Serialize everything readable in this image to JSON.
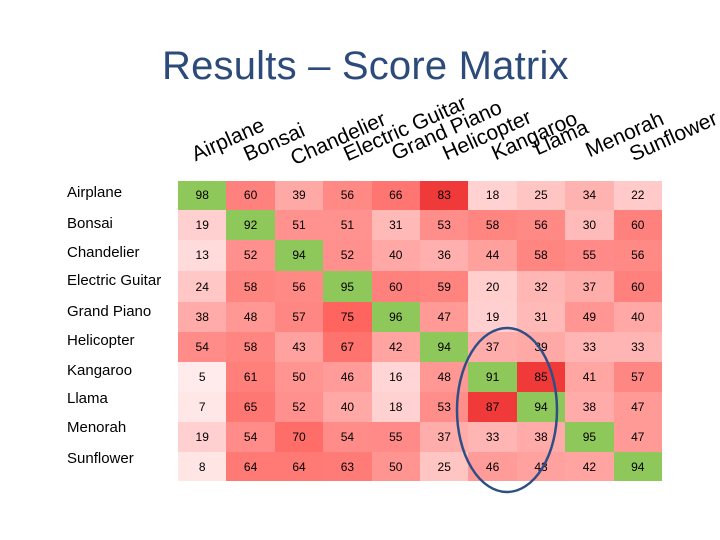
{
  "title": "Results – Score Matrix",
  "column_headers": [
    "Airplane",
    "Bonsai",
    "Chandelier",
    "Electric Guitar",
    "Grand Piano",
    "Helicopter",
    "Kangaroo",
    "Llama",
    "Menorah",
    "Sunflower"
  ],
  "row_headers": [
    "Airplane",
    "Bonsai",
    "Chandelier",
    "Electric Guitar",
    "Grand Piano",
    "Helicopter",
    "Kangaroo",
    "Llama",
    "Menorah",
    "Sunflower"
  ],
  "matrix": [
    [
      98,
      60,
      39,
      56,
      66,
      83,
      18,
      25,
      34,
      22
    ],
    [
      19,
      92,
      51,
      51,
      31,
      53,
      58,
      56,
      30,
      60
    ],
    [
      13,
      52,
      94,
      52,
      40,
      36,
      44,
      58,
      55,
      56
    ],
    [
      24,
      58,
      56,
      95,
      60,
      59,
      20,
      32,
      37,
      60
    ],
    [
      38,
      48,
      57,
      75,
      96,
      47,
      19,
      31,
      49,
      40
    ],
    [
      54,
      58,
      43,
      67,
      42,
      94,
      37,
      39,
      33,
      33
    ],
    [
      5,
      61,
      50,
      46,
      16,
      48,
      91,
      85,
      41,
      57
    ],
    [
      7,
      65,
      52,
      40,
      18,
      53,
      87,
      94,
      38,
      47
    ],
    [
      19,
      54,
      70,
      54,
      55,
      37,
      33,
      38,
      95,
      47
    ],
    [
      8,
      64,
      64,
      63,
      50,
      25,
      46,
      43,
      42,
      94
    ]
  ],
  "colors": {
    "title": "#2c4a7a",
    "highlight_green": "#8fc85a",
    "highlight_red": "#f03a3a",
    "circle": "#2e4f86"
  },
  "chart_data": {
    "type": "heatmap",
    "title": "Results – Score Matrix",
    "x_categories": [
      "Airplane",
      "Bonsai",
      "Chandelier",
      "Electric Guitar",
      "Grand Piano",
      "Helicopter",
      "Kangaroo",
      "Llama",
      "Menorah",
      "Sunflower"
    ],
    "y_categories": [
      "Airplane",
      "Bonsai",
      "Chandelier",
      "Electric Guitar",
      "Grand Piano",
      "Helicopter",
      "Kangaroo",
      "Llama",
      "Menorah",
      "Sunflower"
    ],
    "values": [
      [
        98,
        60,
        39,
        56,
        66,
        83,
        18,
        25,
        34,
        22
      ],
      [
        19,
        92,
        51,
        51,
        31,
        53,
        58,
        56,
        30,
        60
      ],
      [
        13,
        52,
        94,
        52,
        40,
        36,
        44,
        58,
        55,
        56
      ],
      [
        24,
        58,
        56,
        95,
        60,
        59,
        20,
        32,
        37,
        60
      ],
      [
        38,
        48,
        57,
        75,
        96,
        47,
        19,
        31,
        49,
        40
      ],
      [
        54,
        58,
        43,
        67,
        42,
        94,
        37,
        39,
        33,
        33
      ],
      [
        5,
        61,
        50,
        46,
        16,
        48,
        91,
        85,
        41,
        57
      ],
      [
        7,
        65,
        52,
        40,
        18,
        53,
        87,
        94,
        38,
        47
      ],
      [
        19,
        54,
        70,
        54,
        55,
        37,
        33,
        38,
        95,
        47
      ],
      [
        8,
        64,
        64,
        63,
        50,
        25,
        46,
        43,
        42,
        94
      ]
    ]
  }
}
